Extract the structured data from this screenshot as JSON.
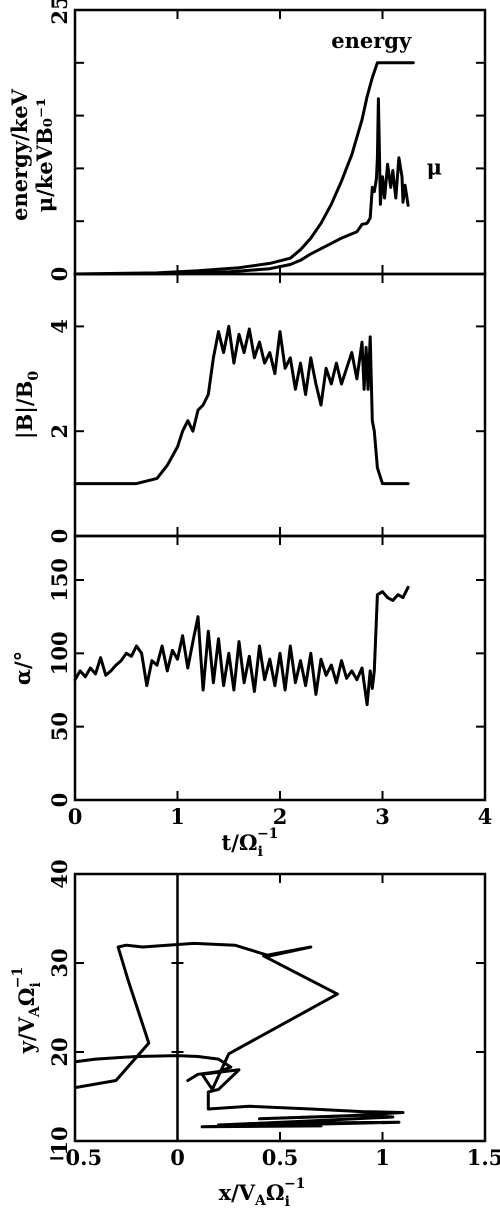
{
  "chart_data": [
    {
      "id": "energy",
      "type": "line",
      "ylabel_lines": [
        "energy/keV",
        "μ/keVB₀⁻¹"
      ],
      "ylim": [
        0,
        25
      ],
      "xlim": [
        0,
        4
      ],
      "yticks": [
        0,
        5,
        10,
        15,
        20,
        25
      ],
      "ytick_labels": [
        "0",
        "",
        "",
        "",
        "",
        "25"
      ],
      "xticks": [
        0,
        1,
        2,
        3,
        4
      ],
      "annotations": [
        {
          "text": "energy",
          "x": 2.5,
          "y": 21.4
        },
        {
          "text": "μ",
          "x": 3.43,
          "y": 9.4
        }
      ],
      "series": [
        {
          "name": "energy",
          "x": [
            0.0,
            0.8,
            1.2,
            1.6,
            1.9,
            2.1,
            2.2,
            2.3,
            2.4,
            2.5,
            2.6,
            2.7,
            2.8,
            2.85,
            2.9,
            2.95,
            3.0,
            3.1,
            3.2,
            3.3
          ],
          "y": [
            0.0,
            0.1,
            0.3,
            0.6,
            1.0,
            1.5,
            2.3,
            3.4,
            4.8,
            6.6,
            8.8,
            11.3,
            14.6,
            16.8,
            18.6,
            20.0,
            20.0,
            20.0,
            20.0,
            20.0
          ]
        },
        {
          "name": "μ",
          "x": [
            0.0,
            1.0,
            1.5,
            1.9,
            2.1,
            2.2,
            2.3,
            2.4,
            2.5,
            2.6,
            2.7,
            2.75,
            2.8,
            2.85,
            2.88,
            2.9,
            2.92,
            2.94,
            2.95,
            2.96,
            2.98,
            3.0,
            3.02,
            3.05,
            3.08,
            3.1,
            3.13,
            3.16,
            3.19,
            3.2,
            3.22,
            3.25
          ],
          "y": [
            0.0,
            0.05,
            0.2,
            0.5,
            0.9,
            1.3,
            1.9,
            2.4,
            2.9,
            3.4,
            3.8,
            4.0,
            4.7,
            4.8,
            5.3,
            8.2,
            7.8,
            9.0,
            11.0,
            16.6,
            6.6,
            9.2,
            7.2,
            10.4,
            8.2,
            9.8,
            7.2,
            11.0,
            9.2,
            6.8,
            8.4,
            6.5
          ]
        }
      ]
    },
    {
      "id": "bfield",
      "type": "line",
      "ylabel_main": "|B|/B",
      "ylabel_sub": "0",
      "ylim": [
        0,
        5
      ],
      "xlim": [
        0,
        4
      ],
      "yticks": [
        0,
        2,
        4
      ],
      "ytick_labels": [
        "0",
        "2",
        "4"
      ],
      "xticks": [
        0,
        1,
        2,
        3,
        4
      ],
      "series": [
        {
          "name": "",
          "x": [
            0.0,
            0.6,
            0.8,
            0.9,
            1.0,
            1.05,
            1.1,
            1.15,
            1.2,
            1.25,
            1.3,
            1.35,
            1.4,
            1.45,
            1.5,
            1.55,
            1.6,
            1.65,
            1.7,
            1.75,
            1.8,
            1.85,
            1.9,
            1.95,
            2.0,
            2.05,
            2.1,
            2.15,
            2.2,
            2.25,
            2.3,
            2.35,
            2.4,
            2.45,
            2.5,
            2.55,
            2.6,
            2.65,
            2.7,
            2.75,
            2.8,
            2.82,
            2.84,
            2.86,
            2.88,
            2.9,
            2.92,
            2.95,
            3.0,
            3.1,
            3.2,
            3.25
          ],
          "y": [
            1.0,
            1.0,
            1.1,
            1.35,
            1.7,
            2.0,
            2.2,
            2.0,
            2.4,
            2.5,
            2.7,
            3.4,
            3.9,
            3.5,
            4.0,
            3.3,
            3.85,
            3.5,
            3.95,
            3.4,
            3.7,
            3.3,
            3.5,
            3.1,
            3.9,
            3.2,
            3.4,
            2.8,
            3.3,
            2.7,
            3.4,
            2.9,
            2.5,
            3.2,
            2.9,
            3.3,
            2.9,
            3.2,
            3.5,
            3.0,
            3.7,
            2.8,
            3.6,
            2.8,
            3.8,
            2.2,
            2.0,
            1.3,
            1.0,
            1.0,
            1.0,
            1.0
          ]
        }
      ]
    },
    {
      "id": "pitch",
      "type": "line",
      "ylabel_main": "α/°",
      "ylim": [
        0,
        180
      ],
      "xlim": [
        0,
        4
      ],
      "yticks": [
        0,
        50,
        100,
        150
      ],
      "ytick_labels": [
        "0",
        "50",
        "100",
        "150"
      ],
      "xticks": [
        0,
        1,
        2,
        3,
        4
      ],
      "xtick_labels": [
        "0",
        "1",
        "2",
        "3",
        "4"
      ],
      "xlabel_main": "t/Ω",
      "xlabel_sup": "−1",
      "xlabel_subi": "i",
      "series": [
        {
          "name": "",
          "x": [
            0.0,
            0.05,
            0.1,
            0.15,
            0.2,
            0.25,
            0.3,
            0.35,
            0.4,
            0.45,
            0.5,
            0.55,
            0.6,
            0.65,
            0.7,
            0.75,
            0.8,
            0.85,
            0.9,
            0.95,
            1.0,
            1.05,
            1.1,
            1.15,
            1.2,
            1.25,
            1.3,
            1.35,
            1.4,
            1.45,
            1.5,
            1.55,
            1.6,
            1.65,
            1.7,
            1.75,
            1.8,
            1.85,
            1.9,
            1.95,
            2.0,
            2.05,
            2.1,
            2.15,
            2.2,
            2.25,
            2.3,
            2.35,
            2.4,
            2.45,
            2.5,
            2.55,
            2.6,
            2.65,
            2.7,
            2.75,
            2.8,
            2.85,
            2.88,
            2.9,
            2.92,
            2.95,
            3.0,
            3.05,
            3.1,
            3.15,
            3.2,
            3.25
          ],
          "y": [
            82,
            88,
            84,
            90,
            86,
            97,
            85,
            88,
            92,
            95,
            100,
            98,
            105,
            100,
            78,
            95,
            92,
            105,
            88,
            102,
            96,
            112,
            90,
            108,
            125,
            75,
            115,
            80,
            110,
            78,
            100,
            75,
            108,
            80,
            98,
            74,
            105,
            82,
            96,
            78,
            100,
            75,
            105,
            80,
            95,
            78,
            100,
            72,
            96,
            85,
            92,
            80,
            95,
            83,
            88,
            82,
            90,
            65,
            88,
            76,
            88,
            140,
            142,
            138,
            136,
            140,
            138,
            145
          ]
        }
      ]
    },
    {
      "id": "trajectory",
      "type": "line",
      "ylabel_main": "y/V",
      "ylabel_subA": "A",
      "ylabel_omega": "Ω",
      "ylabel_sup": "−1",
      "ylabel_subi": "i",
      "xlabel_main": "x/V",
      "xlabel_subA": "A",
      "xlabel_omega": "Ω",
      "xlabel_sup": "−1",
      "xlabel_subi": "i",
      "xlim": [
        -0.5,
        1.5
      ],
      "ylim": [
        10,
        40
      ],
      "xticks": [
        -0.5,
        0,
        0.5,
        1,
        1.5
      ],
      "xtick_labels": [
        "−0.5",
        "0",
        "0.5",
        "1",
        "1.5"
      ],
      "yticks": [
        10,
        20,
        30,
        40
      ],
      "ytick_labels": [
        "10",
        "20",
        "30",
        "40"
      ],
      "vline_x": 0,
      "series": [
        {
          "name": "",
          "x": [
            -0.5,
            -0.3,
            -0.14,
            -0.24,
            -0.29,
            -0.25,
            -0.17,
            0.08,
            0.28,
            0.45,
            0.65,
            0.42,
            0.78,
            0.25,
            0.17,
            0.12,
            0.3,
            0.2,
            0.15,
            0.15,
            0.35,
            0.65,
            0.9,
            1.1,
            0.8,
            0.4,
            0.9,
            1.05,
            0.6,
            0.2,
            0.5,
            1.08,
            0.5,
            0.12,
            0.7,
            0.35
          ],
          "y": [
            16.0,
            16.8,
            21.0,
            28.0,
            31.8,
            32.0,
            31.8,
            32.2,
            32.0,
            30.8,
            31.8,
            30.8,
            26.5,
            19.8,
            15.8,
            17.5,
            18.0,
            15.8,
            15.5,
            13.6,
            13.9,
            13.6,
            13.3,
            13.2,
            12.8,
            12.5,
            12.9,
            12.7,
            12.2,
            11.8,
            12.0,
            12.1,
            11.8,
            11.6,
            11.7,
            11.9
          ]
        },
        {
          "name": "",
          "x": [
            -0.5,
            -0.4,
            -0.2,
            0.0,
            0.1,
            0.2,
            0.26,
            0.2,
            0.1,
            0.05
          ],
          "y": [
            18.9,
            19.2,
            19.5,
            19.6,
            19.5,
            19.2,
            18.3,
            17.8,
            17.5,
            16.8
          ]
        }
      ]
    }
  ]
}
